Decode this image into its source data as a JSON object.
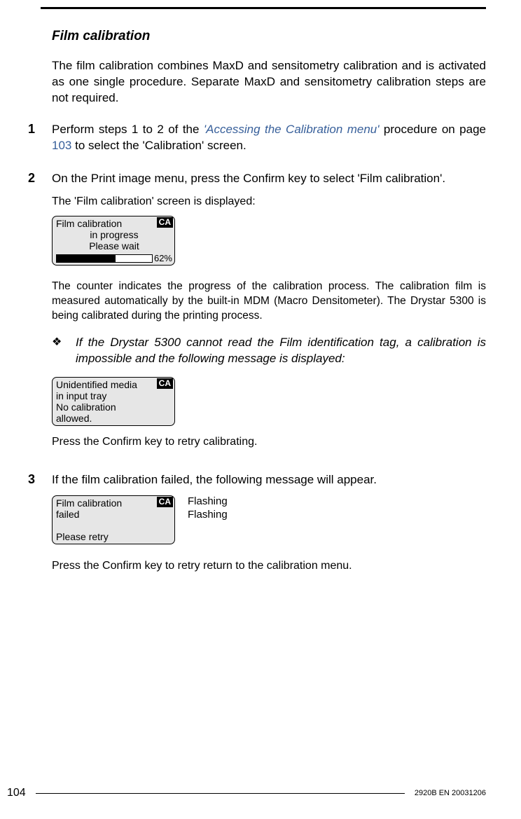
{
  "page": {
    "number": "104",
    "doc_id": "2920B EN 20031206"
  },
  "section": {
    "title": "Film calibration",
    "intro": "The film calibration combines MaxD and sensitometry calibration and is activated as one single procedure. Separate MaxD and sensitometry calibration steps are not required."
  },
  "steps": {
    "s1": {
      "num": "1",
      "text_a": "Perform steps 1 to 2 of the ",
      "link": "'Accessing the Calibration menu'",
      "text_b": " procedure on page ",
      "page_ref": "103",
      "text_c": " to select the 'Calibration' screen."
    },
    "s2": {
      "num": "2",
      "line1": "On the Print image menu, press the Confirm key to select 'Film calibration'.",
      "line2": "The 'Film calibration' screen is displayed:",
      "lcd": {
        "badge": "CA",
        "l1": "Film calibration",
        "l2": "in progress",
        "l3": "Please wait",
        "percent_value": 62,
        "percent_label": "62%"
      },
      "after_lcd": "The counter indicates the progress of the calibration process. The calibration film is measured automatically by the built-in MDM (Macro Densitometer). The Drystar 5300 is being calibrated during the printing process.",
      "note": {
        "bullet": "❖",
        "text": "If the Drystar 5300 cannot read the Film identification tag, a calibration is impossible and the following message is displayed:"
      },
      "lcd2": {
        "badge": "CA",
        "l1": "Unidentified media",
        "l2": "in input tray",
        "l3": "No calibration",
        "l4": "allowed."
      },
      "after_lcd2": "Press the Confirm key to retry calibrating."
    },
    "s3": {
      "num": "3",
      "line1": "If the film calibration failed, the following message will appear.",
      "lcd": {
        "badge": "CA",
        "l1": "Film calibration",
        "l2": "failed",
        "l3": " ",
        "l4": "Please retry"
      },
      "side": {
        "l1": "Flashing",
        "l2": "Flashing"
      },
      "after": "Press the Confirm key to retry return to the calibration menu."
    }
  },
  "colors": {
    "link": "#375f9a",
    "lcd_bg": "#e6e6e6"
  }
}
